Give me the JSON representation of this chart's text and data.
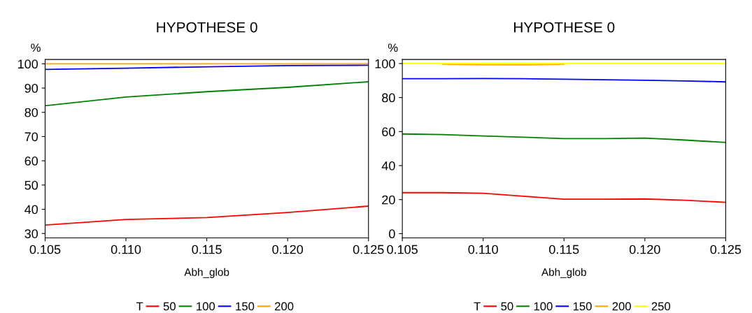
{
  "chart_data": [
    {
      "type": "line",
      "title": "HYPOTHESE 0",
      "xlabel": "Abh_glob",
      "ylabel": "%",
      "legend_title": "T",
      "legend": "bottom",
      "grid": false,
      "x": [
        0.105,
        0.11,
        0.115,
        0.12,
        0.125
      ],
      "xlim": [
        0.105,
        0.125
      ],
      "xticks": [
        {
          "value": 0.105,
          "label": "0.105"
        },
        {
          "value": 0.11,
          "label": "0.110"
        },
        {
          "value": 0.115,
          "label": "0.115"
        },
        {
          "value": 0.12,
          "label": "0.120"
        },
        {
          "value": 0.125,
          "label": "0.125"
        }
      ],
      "ylim": [
        28.2,
        101.8
      ],
      "yticks": [
        30,
        40,
        50,
        60,
        70,
        80,
        90,
        100
      ],
      "series": [
        {
          "name": "50",
          "color": "#ff0000",
          "values": [
            33.5,
            35.8,
            36.6,
            38.7,
            41.3
          ]
        },
        {
          "name": "100",
          "color": "#008000",
          "values": [
            82.7,
            86.3,
            88.5,
            90.3,
            92.6
          ]
        },
        {
          "name": "150",
          "color": "#0000ff",
          "values": [
            97.7,
            98.2,
            98.8,
            99.3,
            99.4
          ]
        },
        {
          "name": "200",
          "color": "#ffa500",
          "values": [
            100,
            100,
            100,
            100,
            100
          ]
        }
      ]
    },
    {
      "type": "line",
      "title": "HYPOTHESE 0",
      "xlabel": "Abh_glob",
      "ylabel": "%",
      "legend_title": "T",
      "legend": "bottom",
      "grid": false,
      "x": [
        0.105,
        0.1075,
        0.11,
        0.1125,
        0.115,
        0.1175,
        0.12,
        0.1225,
        0.125
      ],
      "xlim": [
        0.105,
        0.125
      ],
      "xticks": [
        {
          "value": 0.105,
          "label": "0.105"
        },
        {
          "value": 0.11,
          "label": "0.110"
        },
        {
          "value": 0.115,
          "label": "0.115"
        },
        {
          "value": 0.12,
          "label": "0.120"
        },
        {
          "value": 0.125,
          "label": "0.125"
        }
      ],
      "ylim": [
        -2.5,
        102.4
      ],
      "yticks": [
        0,
        20,
        40,
        60,
        80,
        100
      ],
      "series": [
        {
          "name": "50",
          "color": "#ff0000",
          "values": [
            24.1,
            24.1,
            23.7,
            22.0,
            20.2,
            20.2,
            20.4,
            19.6,
            18.4
          ]
        },
        {
          "name": "100",
          "color": "#008000",
          "values": [
            58.6,
            58.2,
            57.4,
            56.7,
            55.9,
            55.9,
            56.2,
            55.0,
            53.6
          ]
        },
        {
          "name": "150",
          "color": "#0000ff",
          "values": [
            91.1,
            91.1,
            91.2,
            91.1,
            90.8,
            90.5,
            90.2,
            89.8,
            89.2
          ]
        },
        {
          "name": "200",
          "color": "#ffa500",
          "values": [
            null,
            99.6,
            99.3,
            99.2,
            99.6,
            null,
            null,
            null,
            null
          ]
        },
        {
          "name": "250",
          "color": "#ffff00",
          "values": [
            100,
            100,
            100,
            100,
            100,
            100,
            100,
            100,
            100
          ]
        }
      ]
    }
  ]
}
